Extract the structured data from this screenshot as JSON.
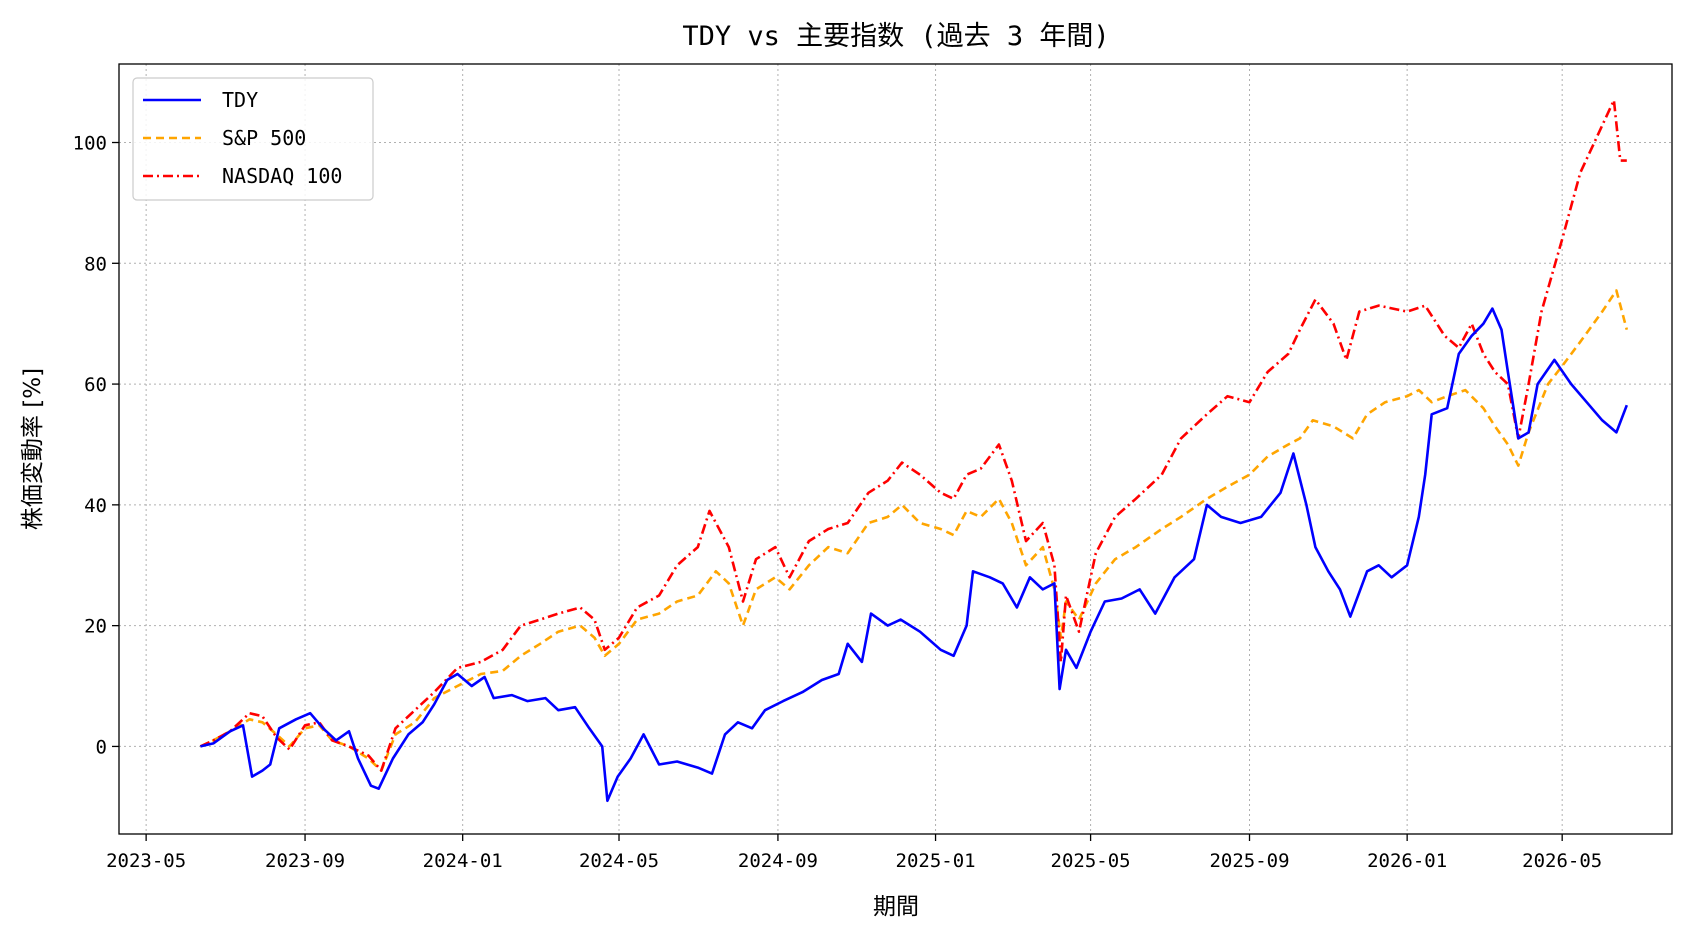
{
  "chart_data": {
    "type": "line",
    "title": "TDY vs 主要指数 (過去 3 年間)",
    "xlabel": "期間",
    "ylabel": "株価変動率 [%]",
    "x_range": [
      "2023-04-10",
      "2026-07-25"
    ],
    "ylim": [
      -14.5,
      113
    ],
    "x_ticks": [
      "2023-05",
      "2023-09",
      "2024-01",
      "2024-05",
      "2024-09",
      "2025-01",
      "2025-05",
      "2025-09",
      "2026-01",
      "2026-05"
    ],
    "y_ticks": [
      0,
      20,
      40,
      60,
      80,
      100
    ],
    "grid": true,
    "legend_position": "upper-left",
    "colors": {
      "TDY": "#0000ff",
      "S&P 500": "#ffa500",
      "NASDAQ 100": "#ff0000"
    },
    "series": [
      {
        "name": "TDY",
        "style": "solid",
        "points": [
          [
            "2023-06-12",
            0
          ],
          [
            "2023-06-22",
            0.5
          ],
          [
            "2023-07-05",
            2.5
          ],
          [
            "2023-07-15",
            3.5
          ],
          [
            "2023-07-22",
            -5
          ],
          [
            "2023-07-30",
            -4
          ],
          [
            "2023-08-05",
            -3
          ],
          [
            "2023-08-12",
            3
          ],
          [
            "2023-08-25",
            4.5
          ],
          [
            "2023-09-05",
            5.5
          ],
          [
            "2023-09-15",
            3
          ],
          [
            "2023-09-25",
            1
          ],
          [
            "2023-10-05",
            2.5
          ],
          [
            "2023-10-12",
            -2
          ],
          [
            "2023-10-22",
            -6.5
          ],
          [
            "2023-10-28",
            -7
          ],
          [
            "2023-11-08",
            -2
          ],
          [
            "2023-11-20",
            2
          ],
          [
            "2023-12-01",
            4
          ],
          [
            "2023-12-10",
            7
          ],
          [
            "2023-12-20",
            11
          ],
          [
            "2023-12-28",
            12
          ],
          [
            "2024-01-08",
            10
          ],
          [
            "2024-01-18",
            11.5
          ],
          [
            "2024-01-25",
            8
          ],
          [
            "2024-02-08",
            8.5
          ],
          [
            "2024-02-20",
            7.5
          ],
          [
            "2024-03-05",
            8
          ],
          [
            "2024-03-15",
            6
          ],
          [
            "2024-03-28",
            6.5
          ],
          [
            "2024-04-08",
            3
          ],
          [
            "2024-04-18",
            0
          ],
          [
            "2024-04-22",
            -9
          ],
          [
            "2024-04-30",
            -5
          ],
          [
            "2024-05-10",
            -2
          ],
          [
            "2024-05-20",
            2
          ],
          [
            "2024-06-01",
            -3
          ],
          [
            "2024-06-15",
            -2.5
          ],
          [
            "2024-07-01",
            -3.5
          ],
          [
            "2024-07-12",
            -4.5
          ],
          [
            "2024-07-22",
            2
          ],
          [
            "2024-08-01",
            4
          ],
          [
            "2024-08-12",
            3
          ],
          [
            "2024-08-22",
            6
          ],
          [
            "2024-09-05",
            7.5
          ],
          [
            "2024-09-20",
            9
          ],
          [
            "2024-10-05",
            11
          ],
          [
            "2024-10-18",
            12
          ],
          [
            "2024-10-25",
            17
          ],
          [
            "2024-11-05",
            14
          ],
          [
            "2024-11-12",
            22
          ],
          [
            "2024-11-25",
            20
          ],
          [
            "2024-12-05",
            21
          ],
          [
            "2024-12-20",
            19
          ],
          [
            "2025-01-05",
            16
          ],
          [
            "2025-01-15",
            15
          ],
          [
            "2025-01-25",
            20
          ],
          [
            "2025-01-30",
            29
          ],
          [
            "2025-02-12",
            28
          ],
          [
            "2025-02-22",
            27
          ],
          [
            "2025-03-05",
            23
          ],
          [
            "2025-03-15",
            28
          ],
          [
            "2025-03-25",
            26
          ],
          [
            "2025-04-03",
            27
          ],
          [
            "2025-04-07",
            9.5
          ],
          [
            "2025-04-12",
            16
          ],
          [
            "2025-04-20",
            13
          ],
          [
            "2025-05-01",
            19
          ],
          [
            "2025-05-12",
            24
          ],
          [
            "2025-05-25",
            24.5
          ],
          [
            "2025-06-08",
            26
          ],
          [
            "2025-06-20",
            22
          ],
          [
            "2025-07-05",
            28
          ],
          [
            "2025-07-20",
            31
          ],
          [
            "2025-07-30",
            40
          ],
          [
            "2025-08-10",
            38
          ],
          [
            "2025-08-25",
            37
          ],
          [
            "2025-09-10",
            38
          ],
          [
            "2025-09-25",
            42
          ],
          [
            "2025-10-05",
            48.5
          ],
          [
            "2025-10-15",
            40
          ],
          [
            "2025-10-22",
            33
          ],
          [
            "2025-11-01",
            29
          ],
          [
            "2025-11-10",
            26
          ],
          [
            "2025-11-18",
            21.5
          ],
          [
            "2025-12-01",
            29
          ],
          [
            "2025-12-10",
            30
          ],
          [
            "2025-12-20",
            28
          ],
          [
            "2026-01-01",
            30
          ],
          [
            "2026-01-10",
            38
          ],
          [
            "2026-01-15",
            45
          ],
          [
            "2026-01-20",
            55
          ],
          [
            "2026-02-01",
            56
          ],
          [
            "2026-02-10",
            65
          ],
          [
            "2026-02-20",
            68
          ],
          [
            "2026-03-01",
            70
          ],
          [
            "2026-03-08",
            72.5
          ],
          [
            "2026-03-15",
            69
          ],
          [
            "2026-03-20",
            62
          ],
          [
            "2026-03-28",
            51
          ],
          [
            "2026-04-05",
            52
          ],
          [
            "2026-04-12",
            60
          ],
          [
            "2026-04-25",
            64
          ],
          [
            "2026-05-08",
            60
          ],
          [
            "2026-05-20",
            57
          ],
          [
            "2026-06-01",
            54
          ],
          [
            "2026-06-12",
            52
          ],
          [
            "2026-06-20",
            56.5
          ]
        ]
      },
      {
        "name": "S&P 500",
        "style": "dashed",
        "points": [
          [
            "2023-06-12",
            0
          ],
          [
            "2023-06-22",
            1
          ],
          [
            "2023-07-05",
            2.5
          ],
          [
            "2023-07-20",
            4.5
          ],
          [
            "2023-07-30",
            4
          ],
          [
            "2023-08-10",
            2
          ],
          [
            "2023-08-20",
            0
          ],
          [
            "2023-09-01",
            3
          ],
          [
            "2023-09-12",
            3.5
          ],
          [
            "2023-09-22",
            1
          ],
          [
            "2023-10-05",
            0
          ],
          [
            "2023-10-20",
            -2
          ],
          [
            "2023-10-30",
            -4
          ],
          [
            "2023-11-10",
            2
          ],
          [
            "2023-11-25",
            4
          ],
          [
            "2023-12-10",
            8
          ],
          [
            "2023-12-28",
            10
          ],
          [
            "2024-01-15",
            12
          ],
          [
            "2024-02-01",
            12.5
          ],
          [
            "2024-02-15",
            15
          ],
          [
            "2024-03-01",
            17
          ],
          [
            "2024-03-15",
            19
          ],
          [
            "2024-04-01",
            20
          ],
          [
            "2024-04-12",
            18
          ],
          [
            "2024-04-20",
            15
          ],
          [
            "2024-05-01",
            17
          ],
          [
            "2024-05-15",
            21
          ],
          [
            "2024-06-01",
            22
          ],
          [
            "2024-06-15",
            24
          ],
          [
            "2024-07-01",
            25
          ],
          [
            "2024-07-15",
            29
          ],
          [
            "2024-07-25",
            27
          ],
          [
            "2024-08-05",
            20
          ],
          [
            "2024-08-15",
            26
          ],
          [
            "2024-08-30",
            28
          ],
          [
            "2024-09-10",
            26
          ],
          [
            "2024-09-25",
            30
          ],
          [
            "2024-10-10",
            33
          ],
          [
            "2024-10-25",
            32
          ],
          [
            "2024-11-10",
            37
          ],
          [
            "2024-11-25",
            38
          ],
          [
            "2024-12-06",
            40
          ],
          [
            "2024-12-20",
            37
          ],
          [
            "2025-01-05",
            36
          ],
          [
            "2025-01-15",
            35
          ],
          [
            "2025-01-25",
            39
          ],
          [
            "2025-02-05",
            38
          ],
          [
            "2025-02-19",
            41
          ],
          [
            "2025-03-01",
            37
          ],
          [
            "2025-03-12",
            30
          ],
          [
            "2025-03-25",
            33
          ],
          [
            "2025-04-03",
            26
          ],
          [
            "2025-04-08",
            18
          ],
          [
            "2025-04-12",
            24
          ],
          [
            "2025-04-22",
            21
          ],
          [
            "2025-05-05",
            27
          ],
          [
            "2025-05-20",
            31
          ],
          [
            "2025-06-05",
            33
          ],
          [
            "2025-06-25",
            36
          ],
          [
            "2025-07-10",
            38
          ],
          [
            "2025-07-30",
            41
          ],
          [
            "2025-08-15",
            43
          ],
          [
            "2025-09-01",
            45
          ],
          [
            "2025-09-15",
            48
          ],
          [
            "2025-10-01",
            50
          ],
          [
            "2025-10-10",
            51
          ],
          [
            "2025-10-20",
            54
          ],
          [
            "2025-11-05",
            53
          ],
          [
            "2025-11-20",
            51
          ],
          [
            "2025-12-01",
            55
          ],
          [
            "2025-12-15",
            57
          ],
          [
            "2026-01-01",
            58
          ],
          [
            "2026-01-10",
            59
          ],
          [
            "2026-01-20",
            57
          ],
          [
            "2026-02-01",
            58
          ],
          [
            "2026-02-15",
            59
          ],
          [
            "2026-03-01",
            56
          ],
          [
            "2026-03-10",
            53
          ],
          [
            "2026-03-20",
            50
          ],
          [
            "2026-03-28",
            46.5
          ],
          [
            "2026-04-05",
            52
          ],
          [
            "2026-04-20",
            60
          ],
          [
            "2026-05-01",
            63
          ],
          [
            "2026-05-15",
            67
          ],
          [
            "2026-06-01",
            72
          ],
          [
            "2026-06-12",
            75.5
          ],
          [
            "2026-06-20",
            69
          ]
        ]
      },
      {
        "name": "NASDAQ 100",
        "style": "dashdot",
        "points": [
          [
            "2023-06-12",
            0
          ],
          [
            "2023-06-22",
            1
          ],
          [
            "2023-07-05",
            2.5
          ],
          [
            "2023-07-20",
            5.5
          ],
          [
            "2023-07-30",
            5
          ],
          [
            "2023-08-10",
            1.5
          ],
          [
            "2023-08-20",
            -0.5
          ],
          [
            "2023-09-01",
            3.5
          ],
          [
            "2023-09-12",
            4
          ],
          [
            "2023-09-22",
            1
          ],
          [
            "2023-10-05",
            0
          ],
          [
            "2023-10-20",
            -1.5
          ],
          [
            "2023-10-30",
            -4
          ],
          [
            "2023-11-10",
            3
          ],
          [
            "2023-11-25",
            6
          ],
          [
            "2023-12-10",
            9
          ],
          [
            "2023-12-28",
            13
          ],
          [
            "2024-01-15",
            14
          ],
          [
            "2024-02-01",
            16
          ],
          [
            "2024-02-15",
            20
          ],
          [
            "2024-03-01",
            21
          ],
          [
            "2024-03-15",
            22
          ],
          [
            "2024-04-01",
            23
          ],
          [
            "2024-04-12",
            21
          ],
          [
            "2024-04-20",
            16
          ],
          [
            "2024-05-01",
            18
          ],
          [
            "2024-05-15",
            23
          ],
          [
            "2024-06-01",
            25
          ],
          [
            "2024-06-15",
            30
          ],
          [
            "2024-07-01",
            33
          ],
          [
            "2024-07-10",
            39
          ],
          [
            "2024-07-25",
            33
          ],
          [
            "2024-08-05",
            24
          ],
          [
            "2024-08-15",
            31
          ],
          [
            "2024-08-30",
            33
          ],
          [
            "2024-09-10",
            28
          ],
          [
            "2024-09-25",
            34
          ],
          [
            "2024-10-10",
            36
          ],
          [
            "2024-10-25",
            37
          ],
          [
            "2024-11-10",
            42
          ],
          [
            "2024-11-25",
            44
          ],
          [
            "2024-12-06",
            47
          ],
          [
            "2024-12-20",
            45
          ],
          [
            "2025-01-05",
            42
          ],
          [
            "2025-01-15",
            41
          ],
          [
            "2025-01-25",
            45
          ],
          [
            "2025-02-05",
            46
          ],
          [
            "2025-02-19",
            50
          ],
          [
            "2025-03-01",
            44
          ],
          [
            "2025-03-12",
            34
          ],
          [
            "2025-03-25",
            37
          ],
          [
            "2025-04-03",
            30
          ],
          [
            "2025-04-08",
            14
          ],
          [
            "2025-04-12",
            25
          ],
          [
            "2025-04-22",
            19
          ],
          [
            "2025-05-05",
            32
          ],
          [
            "2025-05-20",
            38
          ],
          [
            "2025-06-05",
            41
          ],
          [
            "2025-06-25",
            45
          ],
          [
            "2025-07-10",
            51
          ],
          [
            "2025-07-30",
            55
          ],
          [
            "2025-08-15",
            58
          ],
          [
            "2025-09-01",
            57
          ],
          [
            "2025-09-15",
            62
          ],
          [
            "2025-10-01",
            65
          ],
          [
            "2025-10-10",
            69
          ],
          [
            "2025-10-22",
            74
          ],
          [
            "2025-11-05",
            70
          ],
          [
            "2025-11-15",
            64
          ],
          [
            "2025-11-25",
            72
          ],
          [
            "2025-12-10",
            73
          ],
          [
            "2026-01-01",
            72
          ],
          [
            "2026-01-15",
            73
          ],
          [
            "2026-01-30",
            68
          ],
          [
            "2026-02-10",
            66
          ],
          [
            "2026-02-20",
            70
          ],
          [
            "2026-03-01",
            65
          ],
          [
            "2026-03-10",
            62
          ],
          [
            "2026-03-20",
            60
          ],
          [
            "2026-03-28",
            51
          ],
          [
            "2026-04-05",
            60
          ],
          [
            "2026-04-15",
            72
          ],
          [
            "2026-05-01",
            84
          ],
          [
            "2026-05-15",
            95
          ],
          [
            "2026-05-28",
            101
          ],
          [
            "2026-06-10",
            107
          ],
          [
            "2026-06-15",
            97
          ],
          [
            "2026-06-20",
            97
          ]
        ]
      }
    ]
  }
}
